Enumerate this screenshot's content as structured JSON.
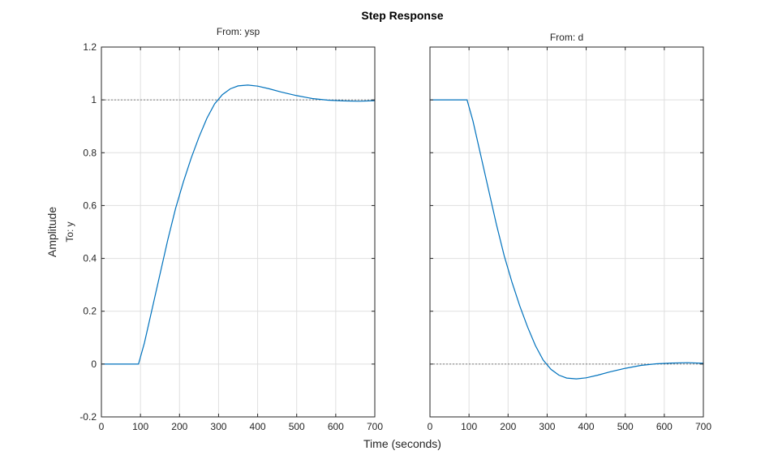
{
  "chart_data": {
    "type": "line",
    "title": "Step Response",
    "xlabel": "Time (seconds)",
    "ylabel": "Amplitude",
    "row_label": "To: y",
    "grid": true,
    "xlim": [
      0,
      700
    ],
    "ylim": [
      -0.2,
      1.2
    ],
    "xticks": [
      0,
      100,
      200,
      300,
      400,
      500,
      600,
      700
    ],
    "yticks": [
      -0.2,
      0,
      0.2,
      0.4,
      0.6,
      0.8,
      1,
      1.2
    ],
    "ytick_labels": [
      "-0.2",
      "0",
      "0.2",
      "0.4",
      "0.6",
      "0.8",
      "1",
      "1.2"
    ],
    "line_color": "#0072BD",
    "reference_color": "#555555",
    "panels": [
      {
        "title": "From: ysp",
        "reference": 1,
        "series": [
          {
            "x": [
              0,
              95,
              110,
              130,
              150,
              170,
              190,
              210,
              230,
              250,
              270,
              290,
              310,
              330,
              350,
              375,
              400,
              430,
              460,
              500,
              540,
              580,
              620,
              660,
              700
            ],
            "y": [
              0,
              0,
              0.08,
              0.21,
              0.34,
              0.47,
              0.59,
              0.69,
              0.78,
              0.86,
              0.93,
              0.985,
              1.02,
              1.042,
              1.053,
              1.056,
              1.052,
              1.042,
              1.03,
              1.016,
              1.005,
              0.999,
              0.996,
              0.995,
              0.997
            ]
          }
        ]
      },
      {
        "title": "From: d",
        "reference": 0,
        "series": [
          {
            "x": [
              0,
              95,
              110,
              130,
              150,
              170,
              190,
              210,
              230,
              250,
              270,
              290,
              310,
              330,
              350,
              375,
              400,
              430,
              460,
              500,
              540,
              580,
              620,
              660,
              700
            ],
            "y": [
              1,
              1,
              0.92,
              0.79,
              0.66,
              0.53,
              0.41,
              0.31,
              0.22,
              0.14,
              0.07,
              0.015,
              -0.02,
              -0.042,
              -0.053,
              -0.056,
              -0.052,
              -0.042,
              -0.03,
              -0.016,
              -0.005,
              0.001,
              0.004,
              0.005,
              0.003
            ]
          }
        ]
      }
    ]
  }
}
